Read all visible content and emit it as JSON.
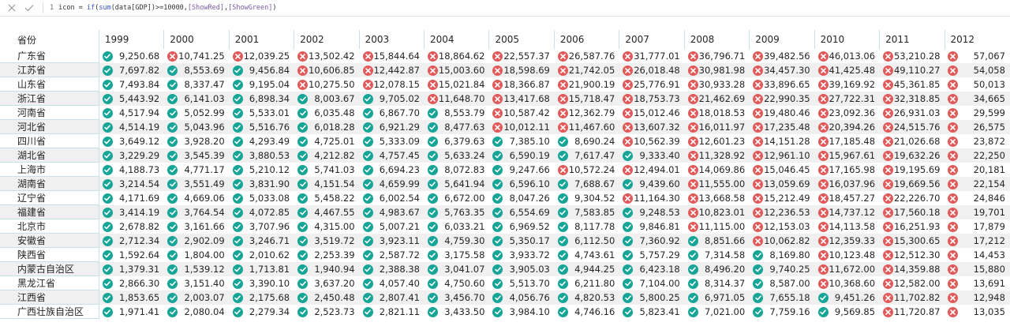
{
  "formula": {
    "line_number": "1",
    "prefix": "icon = ",
    "func_if": "if",
    "paren_open": "(",
    "func_sum": "sum",
    "arg": "(data[GDP])>=10000,",
    "red_measure": "[ShowRed]",
    "comma": ",",
    "green_measure": "[ShowGreen]",
    "paren_close": ")"
  },
  "colors": {
    "red": "#e05a5a",
    "green": "#16a596",
    "row_alt": "#f0f0f0",
    "grid_line": "#c8e2ea"
  },
  "icons": {
    "red": "x-circle-icon",
    "green": "check-circle-icon"
  },
  "table": {
    "header_label": "省份",
    "years": [
      "1999",
      "2000",
      "2001",
      "2002",
      "2003",
      "2004",
      "2005",
      "2006",
      "2007",
      "2008",
      "2009",
      "2010",
      "2011",
      "2012"
    ],
    "rows": [
      {
        "label": "广东省",
        "values": [
          "9,250.68",
          "10,741.25",
          "12,039.25",
          "13,502.42",
          "15,844.64",
          "18,864.62",
          "22,557.37",
          "26,587.76",
          "31,777.01",
          "36,796.71",
          "39,482.56",
          "46,013.06",
          "53,210.28",
          "57,067"
        ]
      },
      {
        "label": "江苏省",
        "values": [
          "7,697.82",
          "8,553.69",
          "9,456.84",
          "10,606.85",
          "12,442.87",
          "15,003.60",
          "18,598.69",
          "21,742.05",
          "26,018.48",
          "30,981.98",
          "34,457.30",
          "41,425.48",
          "49,110.27",
          "54,058"
        ]
      },
      {
        "label": "山东省",
        "values": [
          "7,493.84",
          "8,337.47",
          "9,195.04",
          "10,275.50",
          "12,078.15",
          "15,021.84",
          "18,366.87",
          "21,900.19",
          "25,776.91",
          "30,933.28",
          "33,896.65",
          "39,169.92",
          "45,361.85",
          "50,013"
        ]
      },
      {
        "label": "浙江省",
        "values": [
          "5,443.92",
          "6,141.03",
          "6,898.34",
          "8,003.67",
          "9,705.02",
          "11,648.70",
          "13,417.68",
          "15,718.47",
          "18,753.73",
          "21,462.69",
          "22,990.35",
          "27,722.31",
          "32,318.85",
          "34,665"
        ]
      },
      {
        "label": "河南省",
        "values": [
          "4,517.94",
          "5,052.99",
          "5,533.01",
          "6,035.48",
          "6,867.70",
          "8,553.79",
          "10,587.42",
          "12,362.79",
          "15,012.46",
          "18,018.53",
          "19,480.46",
          "23,092.36",
          "26,931.03",
          "29,599"
        ]
      },
      {
        "label": "河北省",
        "values": [
          "4,514.19",
          "5,043.96",
          "5,516.76",
          "6,018.28",
          "6,921.29",
          "8,477.63",
          "10,012.11",
          "11,467.60",
          "13,607.32",
          "16,011.97",
          "17,235.48",
          "20,394.26",
          "24,515.76",
          "26,575"
        ]
      },
      {
        "label": "四川省",
        "values": [
          "3,649.12",
          "3,928.20",
          "4,293.49",
          "4,725.01",
          "5,333.09",
          "6,379.63",
          "7,385.10",
          "8,690.24",
          "10,562.39",
          "12,601.23",
          "14,151.28",
          "17,185.48",
          "21,026.68",
          "23,872"
        ]
      },
      {
        "label": "湖北省",
        "values": [
          "3,229.29",
          "3,545.39",
          "3,880.53",
          "4,212.82",
          "4,757.45",
          "5,633.24",
          "6,590.19",
          "7,617.47",
          "9,333.40",
          "11,328.92",
          "12,961.10",
          "15,967.61",
          "19,632.26",
          "22,250"
        ]
      },
      {
        "label": "上海市",
        "values": [
          "4,188.73",
          "4,771.17",
          "5,210.12",
          "5,741.03",
          "6,694.23",
          "8,072.83",
          "9,247.66",
          "10,572.24",
          "12,494.01",
          "14,069.86",
          "15,046.45",
          "17,165.98",
          "19,195.69",
          "20,181"
        ]
      },
      {
        "label": "湖南省",
        "values": [
          "3,214.54",
          "3,551.49",
          "3,831.90",
          "4,151.54",
          "4,659.99",
          "5,641.94",
          "6,596.10",
          "7,688.67",
          "9,439.60",
          "11,555.00",
          "13,059.69",
          "16,037.96",
          "19,669.56",
          "22,154"
        ]
      },
      {
        "label": "辽宁省",
        "values": [
          "4,171.69",
          "4,669.06",
          "5,033.08",
          "5,458.22",
          "6,002.54",
          "6,672.00",
          "8,047.26",
          "9,304.52",
          "11,164.30",
          "13,668.58",
          "15,212.49",
          "18,457.27",
          "22,226.70",
          "24,846"
        ]
      },
      {
        "label": "福建省",
        "values": [
          "3,414.19",
          "3,764.54",
          "4,072.85",
          "4,467.55",
          "4,983.67",
          "5,763.35",
          "6,554.69",
          "7,583.85",
          "9,248.53",
          "10,823.01",
          "12,236.53",
          "14,737.12",
          "17,560.18",
          "19,701"
        ]
      },
      {
        "label": "北京市",
        "values": [
          "2,678.82",
          "3,161.66",
          "3,707.96",
          "4,315.00",
          "5,007.21",
          "6,033.21",
          "6,969.52",
          "8,117.78",
          "9,846.81",
          "11,115.00",
          "12,153.03",
          "14,113.58",
          "16,251.93",
          "17,879"
        ]
      },
      {
        "label": "安徽省",
        "values": [
          "2,712.34",
          "2,902.09",
          "3,246.71",
          "3,519.72",
          "3,923.11",
          "4,759.30",
          "5,350.17",
          "6,112.50",
          "7,360.92",
          "8,851.66",
          "10,062.82",
          "12,359.33",
          "15,300.65",
          "17,212"
        ]
      },
      {
        "label": "陕西省",
        "values": [
          "1,592.64",
          "1,804.00",
          "2,010.62",
          "2,253.39",
          "2,587.72",
          "3,175.58",
          "3,933.72",
          "4,743.61",
          "5,757.29",
          "7,314.58",
          "8,169.80",
          "10,123.48",
          "12,512.30",
          "14,453"
        ]
      },
      {
        "label": "内蒙古自治区",
        "values": [
          "1,379.31",
          "1,539.12",
          "1,713.81",
          "1,940.94",
          "2,388.38",
          "3,041.07",
          "3,905.03",
          "4,944.25",
          "6,423.18",
          "8,496.20",
          "9,740.25",
          "11,672.00",
          "14,359.88",
          "15,880"
        ]
      },
      {
        "label": "黑龙江省",
        "values": [
          "2,866.30",
          "3,151.40",
          "3,390.10",
          "3,637.20",
          "4,057.40",
          "4,750.60",
          "5,513.70",
          "6,211.80",
          "7,104.00",
          "8,314.37",
          "8,587.00",
          "10,368.60",
          "12,582.00",
          "13,691"
        ]
      },
      {
        "label": "江西省",
        "values": [
          "1,853.65",
          "2,003.07",
          "2,175.68",
          "2,450.48",
          "2,807.41",
          "3,456.70",
          "4,056.76",
          "4,820.53",
          "5,800.25",
          "6,971.05",
          "7,655.18",
          "9,451.26",
          "11,702.82",
          "12,948"
        ]
      },
      {
        "label": "广西壮族自治区",
        "values": [
          "1,971.41",
          "2,080.04",
          "2,279.34",
          "2,523.73",
          "2,821.11",
          "3,433.50",
          "3,984.10",
          "4,746.16",
          "5,823.41",
          "7,021.00",
          "7,759.16",
          "9,569.85",
          "11,720.87",
          "13,035"
        ]
      }
    ]
  }
}
